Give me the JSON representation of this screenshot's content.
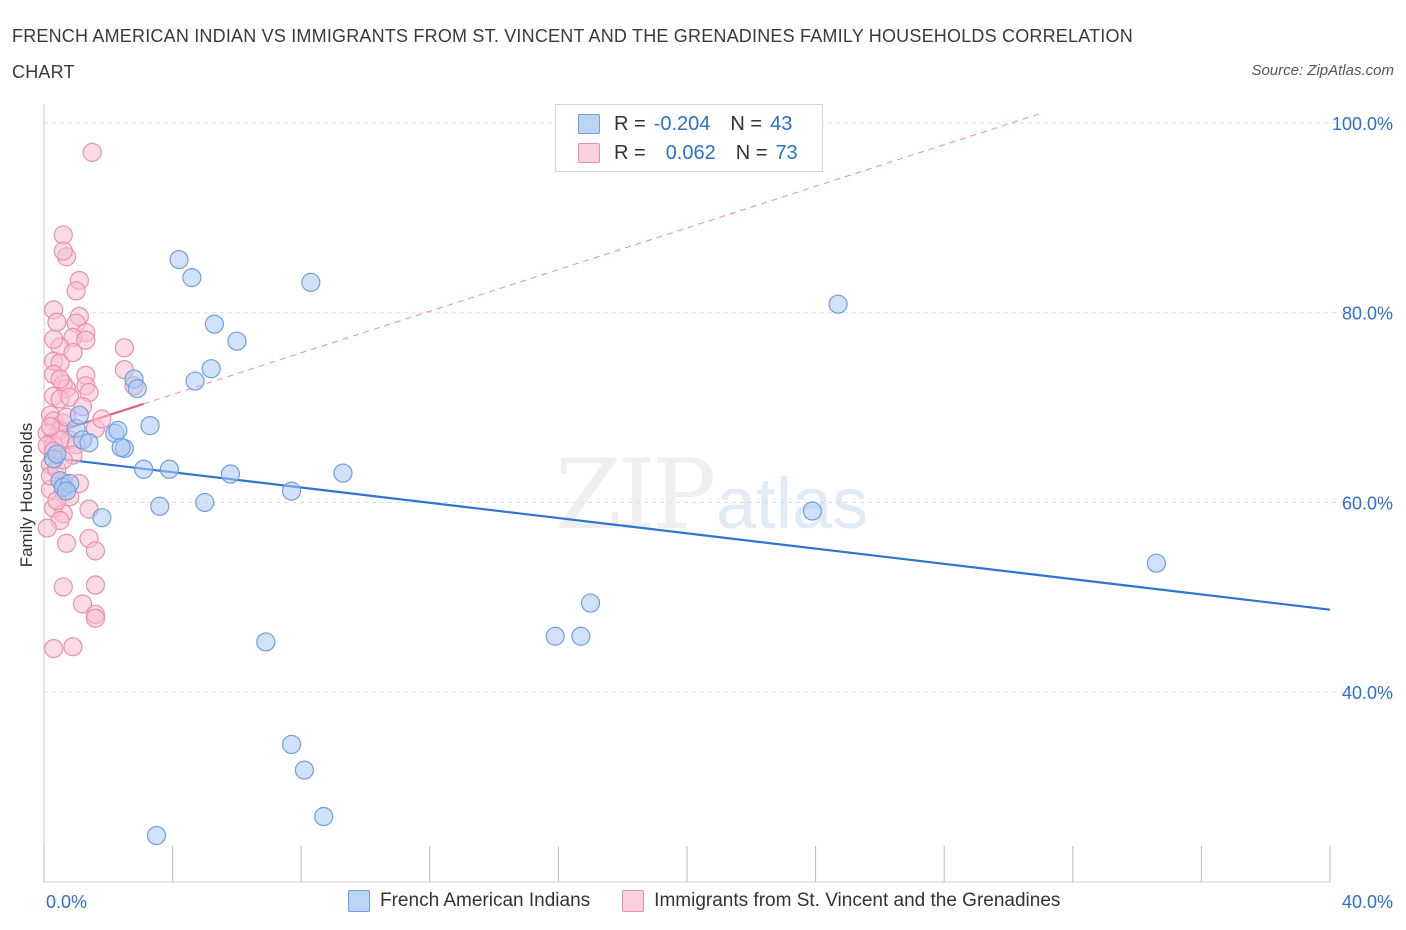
{
  "title": "FRENCH AMERICAN INDIAN VS IMMIGRANTS FROM ST. VINCENT AND THE GRENADINES FAMILY HOUSEHOLDS CORRELATION CHART",
  "source": "Source: ZipAtlas.com",
  "watermark": {
    "zip": "ZIP",
    "atlas": "atlas"
  },
  "legend": [
    {
      "r_label": "R =",
      "r_value": "-0.204",
      "n_label": "N =",
      "n_value": "43"
    },
    {
      "r_label": "R =",
      "r_value": "0.062",
      "n_label": "N =",
      "n_value": "73"
    }
  ],
  "colors": {
    "blue_fill": "#a9c8f2",
    "blue_stroke": "#6f9fe0",
    "blue_line": "#2f74d0",
    "pink_fill": "#f7bfd0",
    "pink_stroke": "#ea8fae",
    "pink_line": "#e45b8b",
    "axis_label": "#2e6fcc",
    "grid": "#dddddd"
  },
  "chart_data": {
    "type": "scatter",
    "title": "FRENCH AMERICAN INDIAN VS IMMIGRANTS FROM ST. VINCENT AND THE GRENADINES FAMILY HOUSEHOLDS CORRELATION CHART",
    "xlabel": "",
    "ylabel": "Family Households",
    "xlim": [
      0,
      40
    ],
    "ylim": [
      20,
      102
    ],
    "x_ticks": [
      0,
      40
    ],
    "x_tick_labels": [
      "0.0%",
      "40.0%"
    ],
    "y_ticks": [
      40,
      60,
      80,
      100
    ],
    "y_tick_labels": [
      "40.0%",
      "60.0%",
      "80.0%",
      "100.0%"
    ],
    "grid": true,
    "legend_position": "top-center",
    "series": [
      {
        "name": "French American Indians",
        "color": "#a9c8f2",
        "points": [
          [
            0.3,
            64.6
          ],
          [
            0.5,
            62.3
          ],
          [
            0.6,
            61.6
          ],
          [
            0.8,
            62.0
          ],
          [
            1.0,
            67.8
          ],
          [
            1.2,
            66.6
          ],
          [
            1.4,
            66.3
          ],
          [
            1.8,
            58.4
          ],
          [
            2.2,
            67.3
          ],
          [
            2.3,
            67.6
          ],
          [
            2.5,
            65.7
          ],
          [
            2.8,
            73.0
          ],
          [
            2.9,
            72.0
          ],
          [
            3.1,
            63.5
          ],
          [
            3.3,
            68.1
          ],
          [
            3.6,
            59.6
          ],
          [
            3.9,
            63.5
          ],
          [
            4.2,
            85.6
          ],
          [
            4.6,
            83.7
          ],
          [
            4.7,
            72.8
          ],
          [
            5.0,
            60.0
          ],
          [
            5.2,
            74.1
          ],
          [
            5.3,
            78.8
          ],
          [
            5.8,
            63.0
          ],
          [
            6.0,
            77.0
          ],
          [
            6.9,
            45.3
          ],
          [
            7.7,
            34.5
          ],
          [
            7.7,
            61.2
          ],
          [
            8.1,
            31.8
          ],
          [
            8.3,
            83.2
          ],
          [
            8.7,
            26.9
          ],
          [
            9.3,
            63.1
          ],
          [
            3.5,
            24.9
          ],
          [
            15.9,
            45.9
          ],
          [
            16.7,
            45.9
          ],
          [
            17.0,
            49.4
          ],
          [
            23.9,
            59.1
          ],
          [
            24.7,
            80.9
          ],
          [
            34.6,
            53.6
          ],
          [
            0.4,
            65.1
          ],
          [
            1.1,
            69.2
          ],
          [
            0.7,
            61.2
          ],
          [
            2.4,
            65.8
          ]
        ]
      },
      {
        "name": "Immigrants from St. Vincent and the Grenadines",
        "color": "#f7bfd0",
        "points": [
          [
            1.5,
            96.9
          ],
          [
            0.6,
            88.2
          ],
          [
            0.7,
            85.9
          ],
          [
            0.6,
            86.5
          ],
          [
            1.1,
            83.4
          ],
          [
            1.0,
            82.3
          ],
          [
            0.3,
            80.3
          ],
          [
            1.1,
            79.6
          ],
          [
            0.4,
            79.0
          ],
          [
            1.0,
            78.9
          ],
          [
            1.3,
            77.9
          ],
          [
            0.9,
            77.4
          ],
          [
            1.3,
            77.1
          ],
          [
            0.5,
            76.4
          ],
          [
            2.5,
            76.3
          ],
          [
            0.3,
            74.9
          ],
          [
            0.5,
            74.7
          ],
          [
            2.5,
            74.0
          ],
          [
            0.3,
            73.5
          ],
          [
            1.3,
            73.4
          ],
          [
            0.6,
            72.5
          ],
          [
            1.3,
            72.3
          ],
          [
            0.7,
            72.0
          ],
          [
            1.4,
            71.6
          ],
          [
            2.8,
            72.3
          ],
          [
            0.3,
            71.2
          ],
          [
            0.5,
            70.9
          ],
          [
            0.8,
            71.1
          ],
          [
            0.2,
            69.2
          ],
          [
            0.3,
            68.6
          ],
          [
            0.6,
            68.4
          ],
          [
            1.6,
            67.8
          ],
          [
            0.5,
            67.6
          ],
          [
            0.1,
            67.3
          ],
          [
            0.8,
            66.6
          ],
          [
            0.3,
            66.1
          ],
          [
            0.5,
            66.6
          ],
          [
            0.1,
            66.0
          ],
          [
            1.0,
            66.1
          ],
          [
            0.3,
            65.4
          ],
          [
            0.2,
            64.0
          ],
          [
            0.6,
            62.1
          ],
          [
            0.2,
            61.4
          ],
          [
            0.6,
            61.2
          ],
          [
            0.8,
            60.6
          ],
          [
            0.3,
            59.4
          ],
          [
            0.6,
            58.8
          ],
          [
            1.4,
            59.3
          ],
          [
            0.5,
            58.1
          ],
          [
            0.1,
            57.3
          ],
          [
            0.7,
            55.7
          ],
          [
            1.4,
            56.2
          ],
          [
            1.6,
            54.9
          ],
          [
            0.6,
            51.1
          ],
          [
            1.6,
            51.3
          ],
          [
            1.2,
            49.3
          ],
          [
            1.6,
            48.2
          ],
          [
            1.6,
            47.8
          ],
          [
            0.3,
            44.6
          ],
          [
            0.9,
            44.8
          ],
          [
            0.2,
            62.8
          ],
          [
            0.4,
            63.5
          ],
          [
            0.9,
            65.0
          ],
          [
            1.1,
            62.0
          ],
          [
            0.4,
            60.2
          ],
          [
            0.2,
            68.0
          ],
          [
            0.7,
            69.0
          ],
          [
            1.2,
            70.1
          ],
          [
            0.5,
            73.0
          ],
          [
            0.9,
            75.8
          ],
          [
            0.3,
            77.2
          ],
          [
            1.8,
            68.8
          ],
          [
            0.6,
            64.5
          ]
        ]
      }
    ],
    "trendlines": [
      {
        "series": "French American Indians",
        "x": [
          0,
          40
        ],
        "y": [
          64.8,
          48.7
        ],
        "style": "solid"
      },
      {
        "series": "Immigrants from St. Vincent and the Grenadines",
        "x": [
          0,
          3.1
        ],
        "y": [
          67.0,
          70.4
        ],
        "style": "solid"
      },
      {
        "series": "Immigrants from St. Vincent and the Grenadines",
        "x": [
          3.1,
          31
        ],
        "y": [
          70.4,
          101.0
        ],
        "style": "dashed"
      }
    ]
  }
}
